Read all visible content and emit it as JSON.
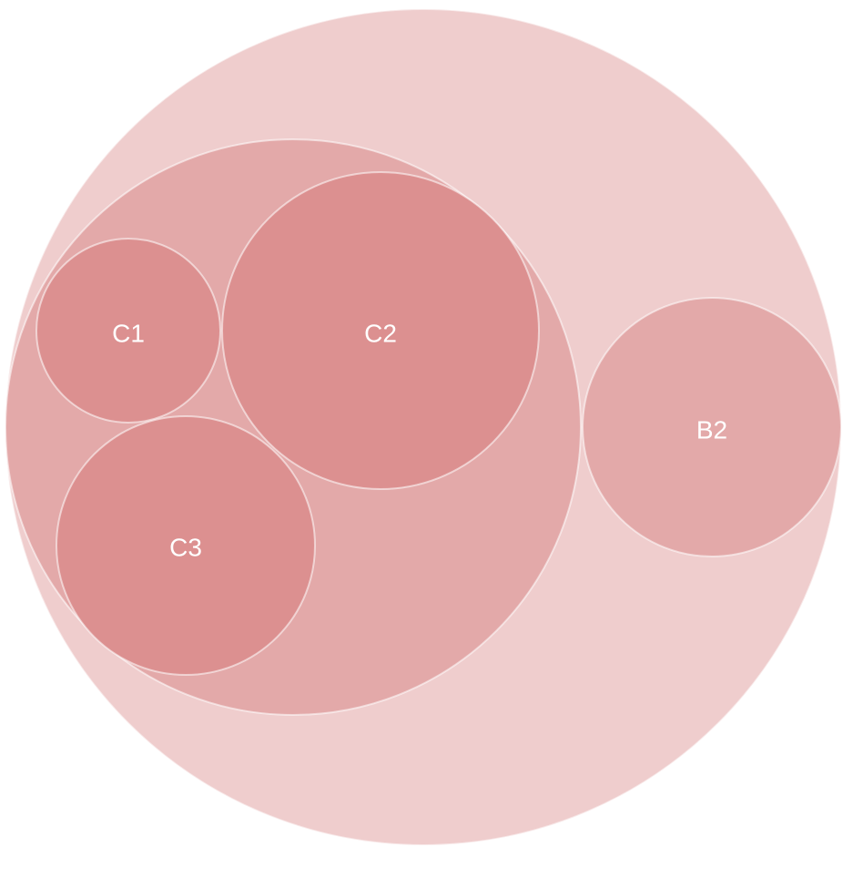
{
  "chart_data": {
    "type": "circle-packing",
    "colors": {
      "depth0": "#efcdcd",
      "depth1": "#e3a9a9",
      "depth2": "#dc9090"
    },
    "root": {
      "name": "",
      "children": [
        {
          "name": "",
          "children": [
            {
              "name": "C1",
              "value": 1
            },
            {
              "name": "C2",
              "value": 3
            },
            {
              "name": "C3",
              "value": 2
            }
          ]
        },
        {
          "name": "B2",
          "value": 2
        }
      ]
    }
  }
}
